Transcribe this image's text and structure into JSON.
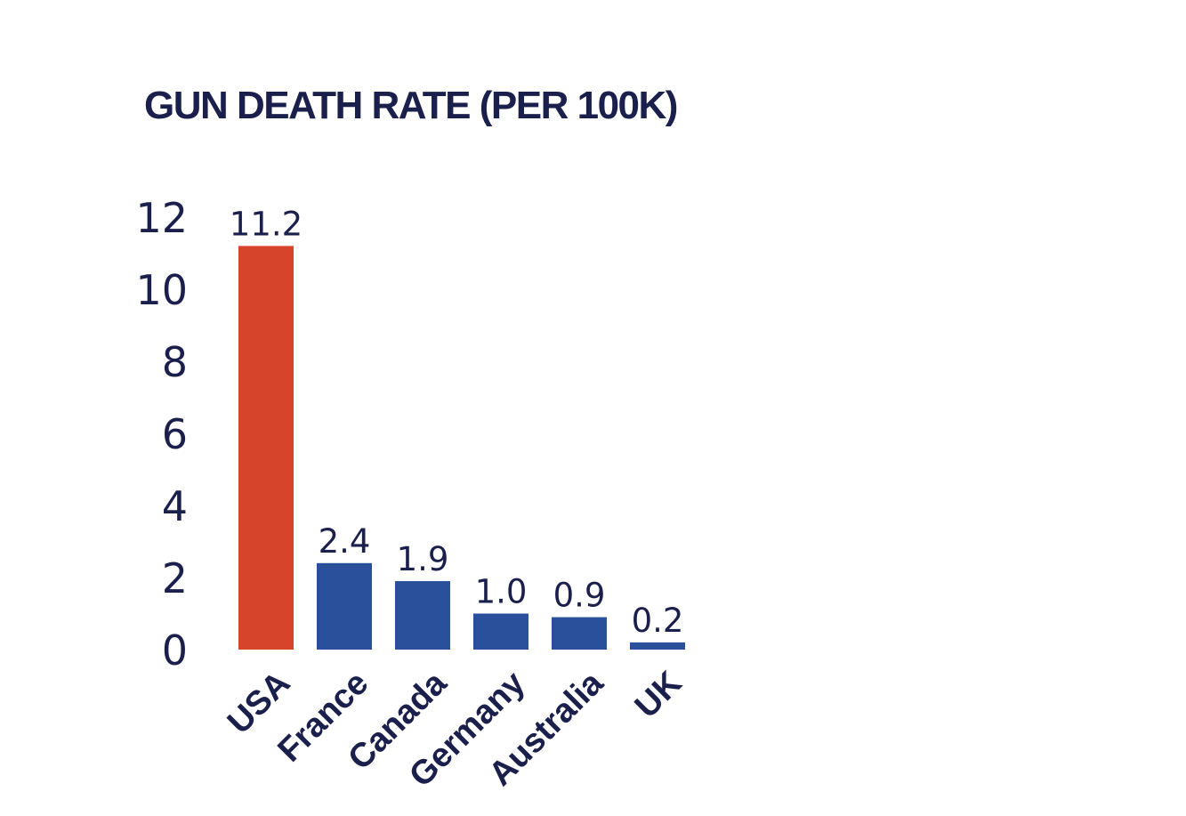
{
  "chart_data": {
    "type": "bar",
    "title": "GUN DEATH RATE (PER 100K)",
    "categories": [
      "USA",
      "France",
      "Canada",
      "Germany",
      "Australia",
      "UK"
    ],
    "values": [
      11.2,
      2.4,
      1.9,
      1.0,
      0.9,
      0.2
    ],
    "value_labels": [
      "11.2",
      "2.4",
      "1.9",
      "1.0",
      "0.9",
      "0.2"
    ],
    "yticks": [
      "0",
      "2",
      "4",
      "6",
      "8",
      "10",
      "12"
    ],
    "ylim": [
      0,
      12
    ],
    "grid": false,
    "legend": "none",
    "colors": {
      "highlight": "#d7442c",
      "bar": "#2a4f9b",
      "text": "#1b1f4b"
    },
    "bar_colors": [
      "highlight",
      "bar",
      "bar",
      "bar",
      "bar",
      "bar"
    ]
  }
}
